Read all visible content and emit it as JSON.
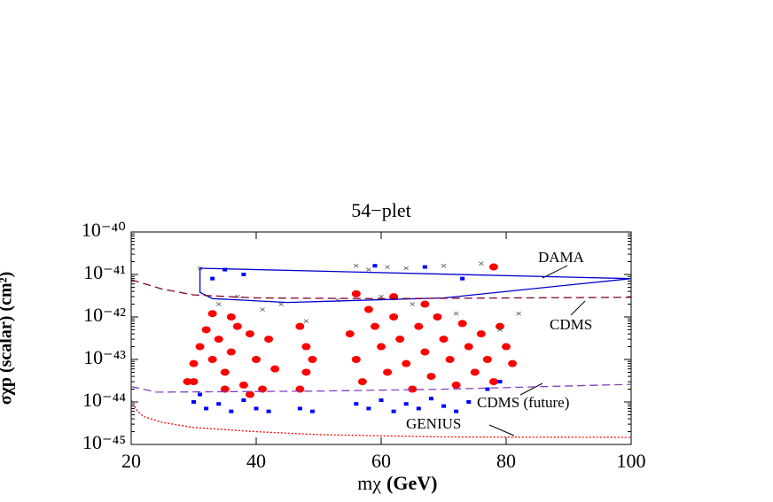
{
  "chart_data": {
    "type": "scatter",
    "title": "54−plet",
    "x_label": "mχ",
    "x_label_unit": "(GeV)",
    "y_label": "σχp (scalar) (cm²)",
    "log_y": true,
    "xlim": [
      20,
      100
    ],
    "xticks": [
      20,
      40,
      60,
      80,
      100
    ],
    "ylim": [
      1e-45,
      1e-40
    ],
    "yticks": [
      {
        "value": 1e-40,
        "label": "10⁻⁴⁰"
      },
      {
        "value": 1e-41,
        "label": "10⁻⁴¹"
      },
      {
        "value": 1e-42,
        "label": "10⁻⁴²"
      },
      {
        "value": 1e-43,
        "label": "10⁻⁴³"
      },
      {
        "value": 1e-44,
        "label": "10⁻⁴⁴"
      },
      {
        "value": 1e-45,
        "label": "10⁻⁴⁵"
      }
    ],
    "annotations": [
      "DAMA",
      "CDMS",
      "CDMS (future)",
      "GENIUS"
    ],
    "series": [
      {
        "marker": "circle",
        "color": "#ff0000",
        "x": [
          29,
          30,
          31,
          32,
          33,
          34,
          35,
          36,
          37,
          38,
          39,
          40,
          41,
          42,
          43,
          33,
          36,
          30,
          35,
          39,
          47,
          48,
          48,
          47,
          49,
          55,
          56,
          57,
          58,
          59,
          60,
          61,
          62,
          63,
          64,
          65,
          66,
          67,
          68,
          69,
          70,
          71,
          72,
          73,
          74,
          75,
          76,
          77,
          78,
          79,
          80,
          56,
          62,
          67,
          78,
          81
        ],
        "y": [
          3e-44,
          8e-44,
          2e-43,
          5e-43,
          1e-43,
          3e-43,
          5e-44,
          1.5e-43,
          6e-43,
          2.5e-44,
          4e-43,
          1e-43,
          2e-44,
          3e-43,
          6e-44,
          1.2e-42,
          1e-42,
          3e-44,
          2e-44,
          1.5e-44,
          6e-43,
          2e-43,
          5e-44,
          2e-44,
          1e-43,
          4e-43,
          1e-43,
          3e-44,
          1.5e-42,
          6e-43,
          2e-43,
          5e-44,
          1e-42,
          3e-43,
          8e-44,
          2e-44,
          6e-43,
          1.5e-43,
          4e-44,
          1e-42,
          3e-43,
          1e-43,
          2.5e-44,
          7e-43,
          2e-43,
          5e-44,
          4e-43,
          1e-43,
          3e-44,
          6e-43,
          2e-43,
          3.5e-42,
          3e-42,
          2e-42,
          1.5e-41,
          8e-44
        ]
      },
      {
        "marker": "square",
        "color": "#0000ff",
        "x": [
          30,
          32,
          34,
          36,
          38,
          40,
          42,
          31,
          35,
          38,
          33,
          47,
          49,
          56,
          58,
          60,
          62,
          64,
          66,
          68,
          70,
          72,
          74,
          77,
          79,
          59,
          67,
          73
        ],
        "y": [
          1e-44,
          7e-45,
          9e-45,
          6e-45,
          1.1e-44,
          7e-45,
          6e-45,
          1.5e-44,
          1.3e-41,
          1e-41,
          8e-42,
          7e-45,
          6e-45,
          9e-45,
          7e-45,
          1.1e-44,
          6e-45,
          9e-45,
          7e-45,
          1.2e-44,
          8e-45,
          6e-45,
          1e-44,
          2e-44,
          3e-44,
          1.6e-41,
          1.5e-41,
          8e-42
        ]
      },
      {
        "marker": "cross",
        "color": "#555555",
        "x": [
          31,
          34,
          37,
          41,
          44,
          56,
          58,
          61,
          64,
          70,
          76,
          60,
          65,
          72,
          79,
          82,
          48,
          53
        ],
        "y": [
          1.4e-41,
          2e-42,
          3e-42,
          1.5e-42,
          2e-42,
          1.6e-41,
          1.3e-41,
          1.5e-41,
          1.4e-41,
          1.6e-41,
          1.8e-41,
          3e-42,
          2e-42,
          1.2e-42,
          5e-43,
          1.2e-42,
          8e-43,
          2.5e-42
        ]
      },
      {
        "line": "solid",
        "closed": true,
        "color": "#0000cc",
        "x": [
          31,
          100,
          100,
          70,
          45,
          33,
          31
        ],
        "y": [
          1.4e-41,
          8e-42,
          8e-42,
          2.8e-42,
          2.2e-42,
          2.7e-42,
          3.8e-42
        ]
      },
      {
        "line": "dashed",
        "color": "#800030",
        "x": [
          20,
          25,
          30,
          40,
          60,
          100
        ],
        "y": [
          7.5e-42,
          4.5e-42,
          3.3e-42,
          2.8e-42,
          2.7e-42,
          2.9e-42
        ]
      },
      {
        "line": "dashed",
        "color": "#8040c0",
        "x": [
          20,
          24,
          50,
          70,
          100
        ],
        "y": [
          2.3e-44,
          1.7e-44,
          1.8e-44,
          2e-44,
          2.6e-44
        ]
      },
      {
        "line": "dotted",
        "color": "#ff0000",
        "x": [
          20,
          21,
          22,
          25,
          30,
          40,
          50,
          70,
          100
        ],
        "y": [
          1.1e-44,
          6e-45,
          4.5e-45,
          3.3e-45,
          2.5e-45,
          2e-45,
          1.7e-45,
          1.5e-45,
          1.47e-45
        ]
      }
    ]
  }
}
